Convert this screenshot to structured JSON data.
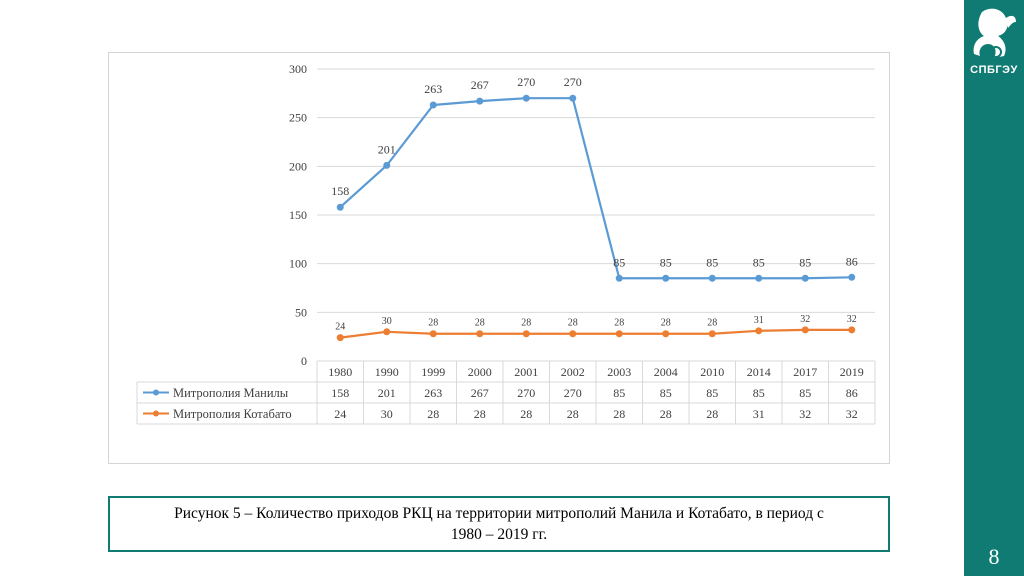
{
  "slide": {
    "page_number": "8",
    "logo_text": "СПБГЭУ",
    "caption": "Рисунок 5 – Количество приходов РКЦ на территории митрополий Манила и Котабато, в период с 1980 – 2019 гг."
  },
  "colors": {
    "sidebar": "#0f7b72",
    "manila": "#5b9bd5",
    "kotabato": "#ed7d31",
    "caption_border": "#0f7b72"
  },
  "chart_data": {
    "type": "line",
    "categories": [
      "1980",
      "1990",
      "1999",
      "2000",
      "2001",
      "2002",
      "2003",
      "2004",
      "2010",
      "2014",
      "2017",
      "2019"
    ],
    "series": [
      {
        "name": "Митрополия Манилы",
        "values": [
          158,
          201,
          263,
          267,
          270,
          270,
          85,
          85,
          85,
          85,
          85,
          86
        ],
        "color": "#5b9bd5"
      },
      {
        "name": "Митрополия Котабато",
        "values": [
          24,
          30,
          28,
          28,
          28,
          28,
          28,
          28,
          28,
          31,
          32,
          32
        ],
        "color": "#ed7d31"
      }
    ],
    "yticks": [
      0,
      50,
      100,
      150,
      200,
      250,
      300
    ],
    "ylim": [
      0,
      300
    ],
    "grid": true,
    "data_table": true,
    "legend": "in data table"
  }
}
